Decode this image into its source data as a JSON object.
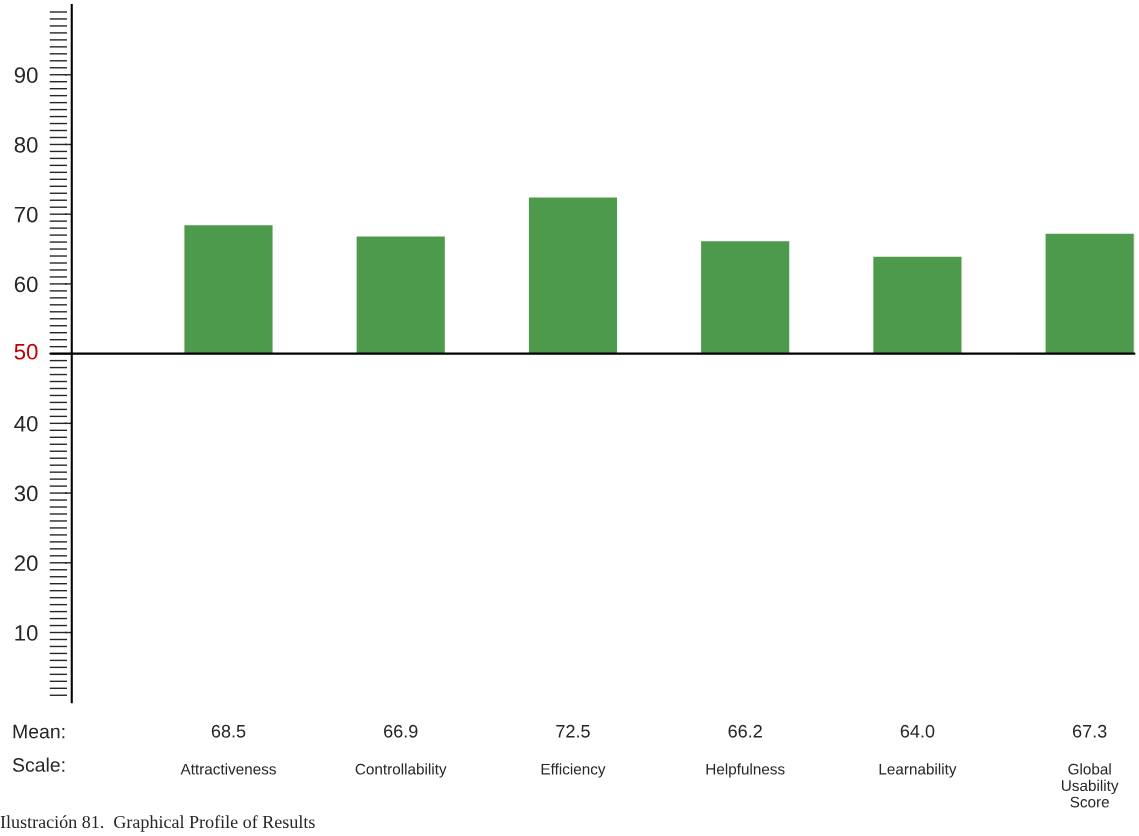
{
  "chart_data": {
    "type": "bar",
    "categories": [
      "Attractiveness",
      "Controllability",
      "Efficiency",
      "Helpfulness",
      "Learnability",
      "Global\nUsability\nScore"
    ],
    "base": [
      50,
      50,
      50,
      50,
      50,
      50
    ],
    "values": [
      18.5,
      16.9,
      22.5,
      16.2,
      14.0,
      17.3
    ],
    "value_labels": [
      "68.5",
      "66.9",
      "72.5",
      "66.2",
      "64.0",
      "67.3"
    ],
    "color": "#4e9a4c",
    "ylim": [
      0,
      100
    ],
    "yticks": [
      10,
      20,
      30,
      40,
      50,
      60,
      70,
      80,
      90
    ],
    "ref_lines": [
      {
        "axis": "y",
        "value": 50,
        "label": "50",
        "color": "#000000"
      }
    ],
    "annotations": [
      "Mean:",
      "Scale:",
      "Ilustración 81.  Graphical Profile of Results"
    ],
    "grid": false,
    "legend": false
  }
}
